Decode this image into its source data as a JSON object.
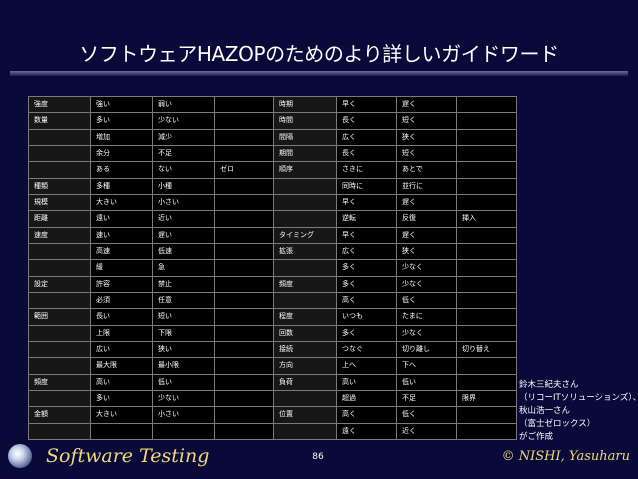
{
  "slide": {
    "title": "ソフトウェアHAZOPのためのより詳しいガイドワード",
    "page_number": "86",
    "brand": "Software Testing",
    "copyright": "© NISHI, Yasuharu",
    "note_lines": [
      "鈴木三紀夫さん",
      "（リコーITソリューションズ）、",
      "秋山浩一さん",
      "（富士ゼロックス）",
      "がご作成"
    ]
  },
  "table": {
    "rows": [
      {
        "a1": "強度",
        "a2": "強い",
        "a3": "弱い",
        "a4": "",
        "b1": "時期",
        "b2": "早く",
        "b3": "遅く",
        "b4": ""
      },
      {
        "a1": "数量",
        "a2": "多い",
        "a3": "少ない",
        "a4": "",
        "b1": "時間",
        "b2": "長く",
        "b3": "短く",
        "b4": ""
      },
      {
        "a1": "",
        "a2": "増加",
        "a3": "減少",
        "a4": "",
        "b1": "間隔",
        "b2": "広く",
        "b3": "狭く",
        "b4": ""
      },
      {
        "a1": "",
        "a2": "余分",
        "a3": "不足",
        "a4": "",
        "b1": "期間",
        "b2": "長く",
        "b3": "短く",
        "b4": ""
      },
      {
        "a1": "",
        "a2": "ある",
        "a3": "ない",
        "a4": "ゼロ",
        "b1": "順序",
        "b2": "さきに",
        "b3": "あとで",
        "b4": ""
      },
      {
        "a1": "種類",
        "a2": "多種",
        "a3": "小種",
        "a4": "",
        "b1": "",
        "b2": "同時に",
        "b3": "並行に",
        "b4": ""
      },
      {
        "a1": "規模",
        "a2": "大きい",
        "a3": "小さい",
        "a4": "",
        "b1": "",
        "b2": "早く",
        "b3": "遅く",
        "b4": ""
      },
      {
        "a1": "距離",
        "a2": "遠い",
        "a3": "近い",
        "a4": "",
        "b1": "",
        "b2": "逆転",
        "b3": "反復",
        "b4": "挿入"
      },
      {
        "a1": "速度",
        "a2": "速い",
        "a3": "遅い",
        "a4": "",
        "b1": "タイミング",
        "b2": "早く",
        "b3": "遅く",
        "b4": ""
      },
      {
        "a1": "",
        "a2": "高速",
        "a3": "低速",
        "a4": "",
        "b1": "拡張",
        "b2": "広く",
        "b3": "狭く",
        "b4": ""
      },
      {
        "a1": "",
        "a2": "緩",
        "a3": "急",
        "a4": "",
        "b1": "",
        "b2": "多く",
        "b3": "少なく",
        "b4": ""
      },
      {
        "a1": "設定",
        "a2": "許容",
        "a3": "禁止",
        "a4": "",
        "b1": "頻度",
        "b2": "多く",
        "b3": "少なく",
        "b4": ""
      },
      {
        "a1": "",
        "a2": "必須",
        "a3": "任意",
        "a4": "",
        "b1": "",
        "b2": "高く",
        "b3": "低く",
        "b4": ""
      },
      {
        "a1": "範囲",
        "a2": "長い",
        "a3": "短い",
        "a4": "",
        "b1": "程度",
        "b2": "いつも",
        "b3": "たまに",
        "b4": ""
      },
      {
        "a1": "",
        "a2": "上限",
        "a3": "下限",
        "a4": "",
        "b1": "回数",
        "b2": "多く",
        "b3": "少なく",
        "b4": ""
      },
      {
        "a1": "",
        "a2": "広い",
        "a3": "狭い",
        "a4": "",
        "b1": "接続",
        "b2": "つなぐ",
        "b3": "切り離し",
        "b4": "切り替え"
      },
      {
        "a1": "",
        "a2": "最大限",
        "a3": "最小限",
        "a4": "",
        "b1": "方向",
        "b2": "上へ",
        "b3": "下へ",
        "b4": ""
      },
      {
        "a1": "頻度",
        "a2": "高い",
        "a3": "低い",
        "a4": "",
        "b1": "負荷",
        "b2": "高い",
        "b3": "低い",
        "b4": ""
      },
      {
        "a1": "",
        "a2": "多い",
        "a3": "少ない",
        "a4": "",
        "b1": "",
        "b2": "超過",
        "b3": "不足",
        "b4": "限界"
      },
      {
        "a1": "金額",
        "a2": "大きい",
        "a3": "小さい",
        "a4": "",
        "b1": "位置",
        "b2": "高く",
        "b3": "低く",
        "b4": ""
      },
      {
        "a1": "",
        "a2": "",
        "a3": "",
        "a4": "",
        "b1": "",
        "b2": "遠く",
        "b3": "近く",
        "b4": ""
      }
    ]
  }
}
